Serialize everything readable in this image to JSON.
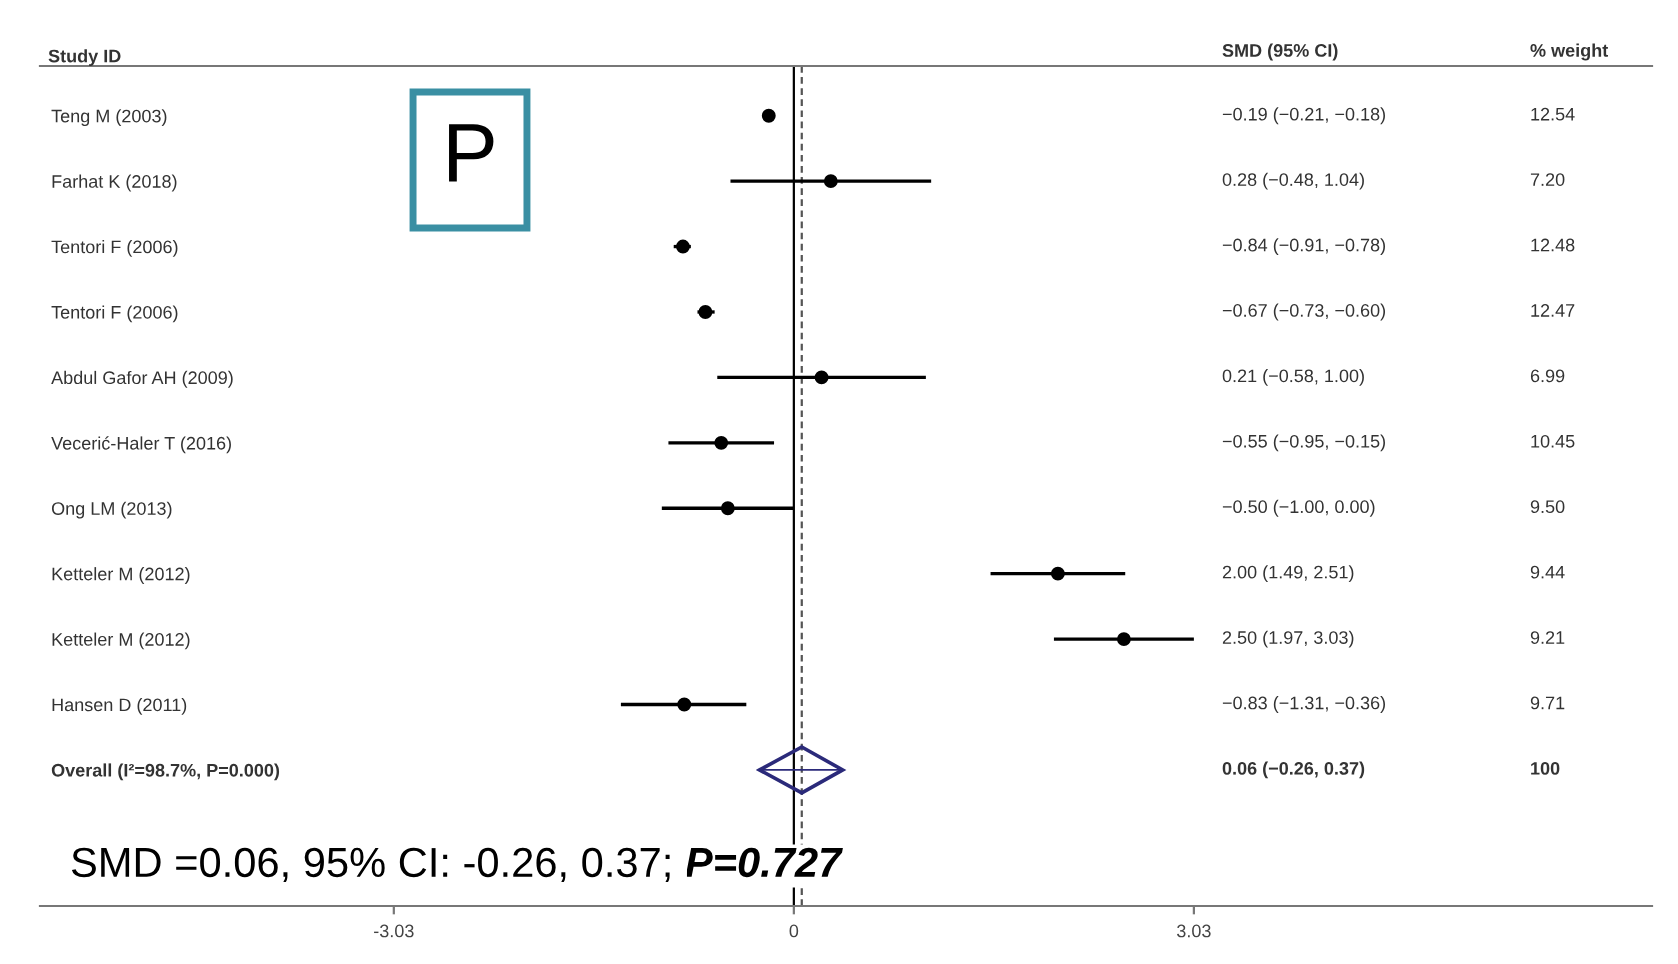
{
  "chart_data": {
    "type": "scatter",
    "orientation": "horizontal",
    "ylabel": "Study ID",
    "categories": [
      "Teng M (2003)",
      "Farhat K (2018)",
      "Tentori F (2006)",
      "Tentori F (2006)",
      "Abdul Gafor AH (2009)",
      "Vecerić-Haler T (2016)",
      "Ong LM (2013)",
      "Ketteler M (2012)",
      "Ketteler M (2012)",
      "Hansen D (2011)",
      "Overall (I²=98.7%, P=0.000)"
    ],
    "series": [
      {
        "marker": "circle",
        "color": "#000000",
        "values": [
          -0.19,
          0.28,
          -0.84,
          -0.67,
          0.21,
          -0.55,
          -0.5,
          2.0,
          2.5,
          -0.83,
          null
        ],
        "errors": [
          [
            -0.21,
            -0.18
          ],
          [
            -0.48,
            1.04
          ],
          [
            -0.91,
            -0.78
          ],
          [
            -0.73,
            -0.6
          ],
          [
            -0.58,
            1.0
          ],
          [
            -0.95,
            -0.15
          ],
          [
            -1.0,
            0.0
          ],
          [
            1.49,
            2.51
          ],
          [
            1.97,
            3.03
          ],
          [
            -1.31,
            -0.36
          ],
          null
        ]
      },
      {
        "marker": "diamond",
        "color": "#2b2a7a",
        "values": [
          null,
          null,
          null,
          null,
          null,
          null,
          null,
          null,
          null,
          null,
          0.06
        ],
        "errors": [
          null,
          null,
          null,
          null,
          null,
          null,
          null,
          null,
          null,
          null,
          [
            -0.26,
            0.37
          ]
        ]
      }
    ],
    "xlim": [
      -5.71,
      6.5
    ],
    "xticks": [
      -3.03,
      0,
      3.03
    ],
    "ref_lines": [
      {
        "axis": "x",
        "value": 0,
        "color": "#000000",
        "line_style": "solid"
      },
      {
        "axis": "x",
        "value": 0.06,
        "color": "#555555",
        "line_style": "dashed"
      }
    ],
    "grid": false,
    "annotations": [
      "P",
      "SMD (95% CI)",
      "% weight",
      "−0.19 (−0.21, −0.18)",
      "0.28 (−0.48, 1.04)",
      "−0.84 (−0.91, −0.78)",
      "−0.67 (−0.73, −0.60)",
      "0.21 (−0.58, 1.00)",
      "−0.55 (−0.95, −0.15)",
      "−0.50 (−1.00, 0.00)",
      "2.00 (1.49, 2.51)",
      "2.50 (1.97, 3.03)",
      "−0.83 (−1.31, −0.36)",
      "0.06 (−0.26, 0.37)",
      "12.54",
      "7.20",
      "12.48",
      "12.47",
      "6.99",
      "10.45",
      "9.50",
      "9.44",
      "9.21",
      "9.71",
      "100",
      "SMD =0.06, 95% CI: -0.26, 0.37; ",
      "P=0.727"
    ]
  }
}
